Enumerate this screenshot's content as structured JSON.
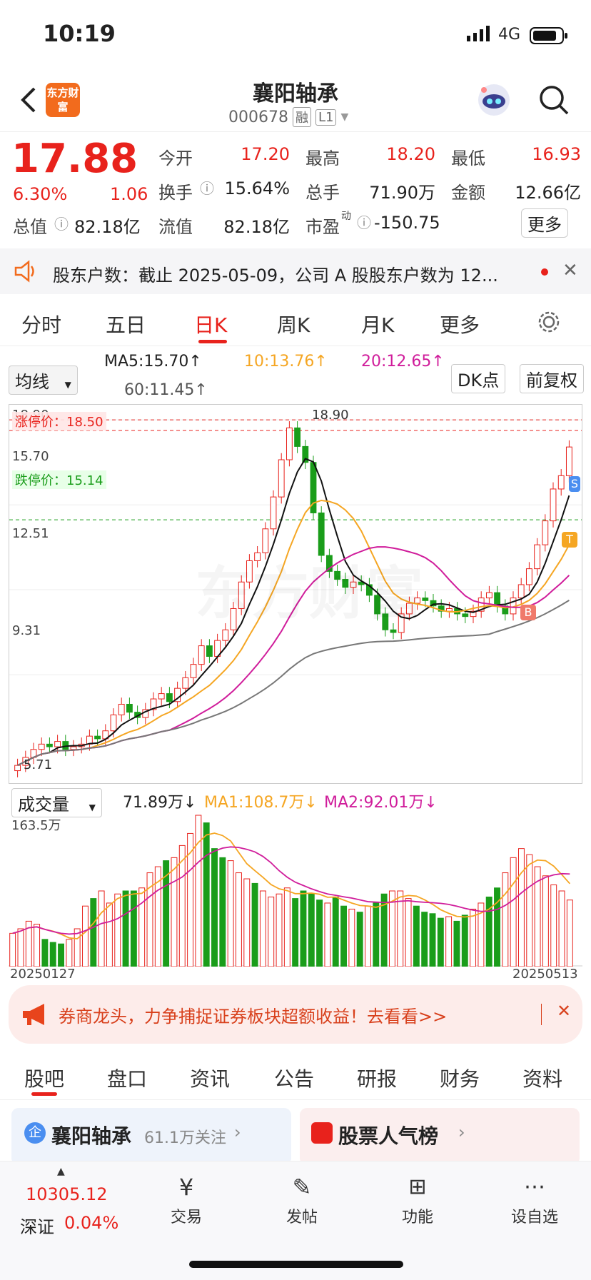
{
  "status_bar": {
    "time": "10:19",
    "network": "4G"
  },
  "header": {
    "logo": "东方财富",
    "title": "襄阳轴承",
    "code": "000678",
    "tag1": "融",
    "tag2": "L1"
  },
  "quote": {
    "price": "17.88",
    "change_pct": "6.30%",
    "change": "1.06",
    "rows": [
      [
        {
          "label": "今开",
          "value": "17.20",
          "color": "red"
        },
        {
          "label": "最高",
          "value": "18.20",
          "color": "red"
        },
        {
          "label": "最低",
          "value": "16.93",
          "color": "red"
        }
      ],
      [
        {
          "label": "换手",
          "value": "15.64%"
        },
        {
          "label": "总手",
          "value": "71.90万"
        },
        {
          "label": "金额",
          "value": "12.66亿"
        }
      ],
      [
        {
          "label": "总值",
          "value": "82.18亿"
        },
        {
          "label": "流值",
          "value": "82.18亿"
        },
        {
          "label": "市盈",
          "value": "-150.75"
        }
      ]
    ],
    "pe_sup": "动",
    "more": "更多"
  },
  "notice": {
    "text": "股东户数：截止 2025-05-09，公司 A 股股东户数为 12..."
  },
  "period_tabs": [
    "分时",
    "五日",
    "日K",
    "周K",
    "月K",
    "更多"
  ],
  "chart_controls": {
    "ma_select": "均线",
    "dk": "DK点",
    "fq": "前复权"
  },
  "ma_legend": {
    "ma5": "MA5:15.70↑",
    "ma10": "10:13.76↑",
    "ma20": "20:12.65↑",
    "ma60": "60:11.45↑"
  },
  "chart_labels": {
    "high_label": "18.90",
    "zt": "涨停价：18.50",
    "dt": "跌停价：15.14",
    "y1": "18.90",
    "y2": "15.70",
    "y3": "12.51",
    "y4": "9.31",
    "low_label": "5.71",
    "marker_b": "B",
    "marker_t": "T",
    "marker_s": "S",
    "watermark": "东方财富"
  },
  "volume_legend": {
    "select": "成交量",
    "vol": "71.89万↓",
    "ma1": "MA1:108.7万↓",
    "ma2": "MA2:92.01万↓",
    "ymax": "163.5万"
  },
  "dates": {
    "start": "20250127",
    "end": "20250513"
  },
  "banner": {
    "text": "券商龙头，力争捕捉证券板块超额收益！去看看>>"
  },
  "bottom_tabs": [
    "股吧",
    "盘口",
    "资讯",
    "公告",
    "研报",
    "财务",
    "资料"
  ],
  "cards": {
    "left_title": "襄阳轴承",
    "left_sub": "61.1万关注",
    "right_title": "股票人气榜"
  },
  "footer": {
    "index_value": "10305.12",
    "index_name": "深证",
    "index_pct": "0.04%",
    "items": [
      "交易",
      "发帖",
      "功能",
      "设自选"
    ]
  },
  "chart_data": {
    "type": "candlestick",
    "x_range": [
      "20250127",
      "20250513"
    ],
    "y_ticks": [
      18.9,
      15.7,
      12.51,
      9.31
    ],
    "limit_up": 18.5,
    "limit_down": 15.14,
    "highest": 18.9,
    "lowest": 5.71,
    "closes": [
      5.9,
      6.2,
      6.5,
      6.7,
      6.6,
      6.8,
      6.5,
      6.6,
      6.7,
      7.0,
      6.9,
      7.2,
      7.8,
      8.2,
      7.9,
      7.7,
      8.0,
      8.4,
      8.6,
      8.3,
      8.8,
      9.2,
      9.7,
      10.4,
      10.0,
      10.6,
      11.0,
      11.8,
      12.8,
      13.6,
      13.9,
      14.8,
      16.0,
      17.4,
      18.6,
      17.9,
      17.3,
      15.4,
      13.8,
      13.2,
      12.9,
      12.6,
      12.8,
      12.7,
      12.3,
      11.6,
      11.0,
      10.9,
      11.6,
      12.0,
      12.2,
      12.1,
      11.9,
      11.7,
      11.8,
      11.6,
      11.5,
      11.7,
      12.2,
      12.4,
      11.9,
      11.6,
      12.2,
      12.7,
      13.3,
      14.2,
      15.1,
      16.3,
      16.8,
      17.88
    ],
    "ma5_last": 15.7,
    "ma10_last": 13.76,
    "ma20_last": 12.65,
    "ma60_last": 11.45,
    "volume_max": "163.5万",
    "volume_ratios": [
      0.22,
      0.25,
      0.3,
      0.28,
      0.18,
      0.16,
      0.15,
      0.18,
      0.25,
      0.4,
      0.45,
      0.5,
      0.42,
      0.48,
      0.5,
      0.5,
      0.52,
      0.62,
      0.66,
      0.7,
      0.72,
      0.8,
      0.88,
      1.0,
      0.95,
      0.78,
      0.72,
      0.7,
      0.62,
      0.58,
      0.55,
      0.5,
      0.46,
      0.48,
      0.52,
      0.45,
      0.5,
      0.48,
      0.44,
      0.42,
      0.46,
      0.4,
      0.38,
      0.36,
      0.4,
      0.42,
      0.48,
      0.5,
      0.5,
      0.45,
      0.4,
      0.36,
      0.35,
      0.32,
      0.33,
      0.3,
      0.34,
      0.38,
      0.42,
      0.46,
      0.52,
      0.62,
      0.72,
      0.78,
      0.74,
      0.66,
      0.6,
      0.54,
      0.5,
      0.44
    ],
    "volume_up": [
      true,
      true,
      true,
      true,
      false,
      false,
      false,
      true,
      true,
      true,
      false,
      true,
      true,
      true,
      false,
      false,
      true,
      true,
      true,
      false,
      true,
      true,
      true,
      true,
      false,
      false,
      false,
      true,
      true,
      true,
      false,
      true,
      true,
      true,
      true,
      false,
      false,
      false,
      false,
      true,
      false,
      false,
      true,
      false,
      true,
      false,
      false,
      true,
      true,
      true,
      false,
      false,
      false,
      false,
      true,
      false,
      false,
      true,
      true,
      false,
      false,
      true,
      true,
      true,
      true,
      true,
      true,
      true,
      true,
      true
    ]
  }
}
